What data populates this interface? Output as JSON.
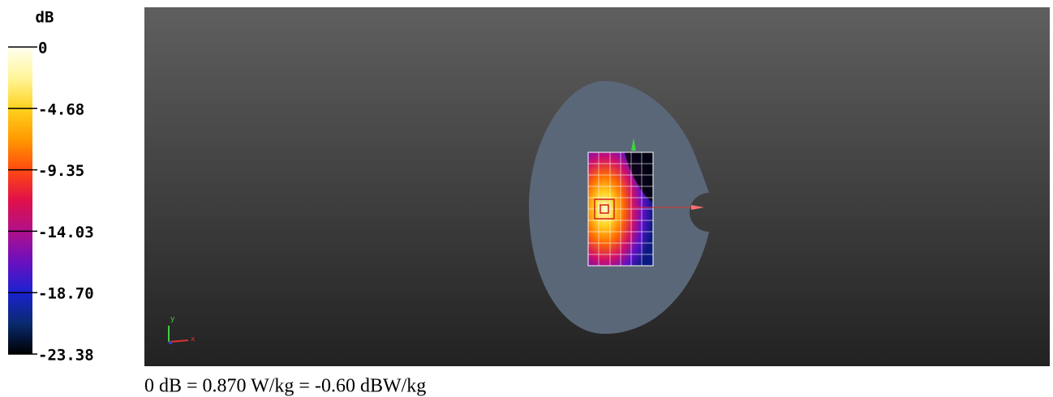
{
  "colorbar": {
    "unit": "dB",
    "ticks": [
      "0",
      "-4.68",
      "-9.35",
      "-14.03",
      "-18.70",
      "-23.38"
    ]
  },
  "view": {
    "axis_y": "y",
    "axis_x": "x"
  },
  "caption": "0 dB = 0.870 W/kg = -0.60 dBW/kg"
}
